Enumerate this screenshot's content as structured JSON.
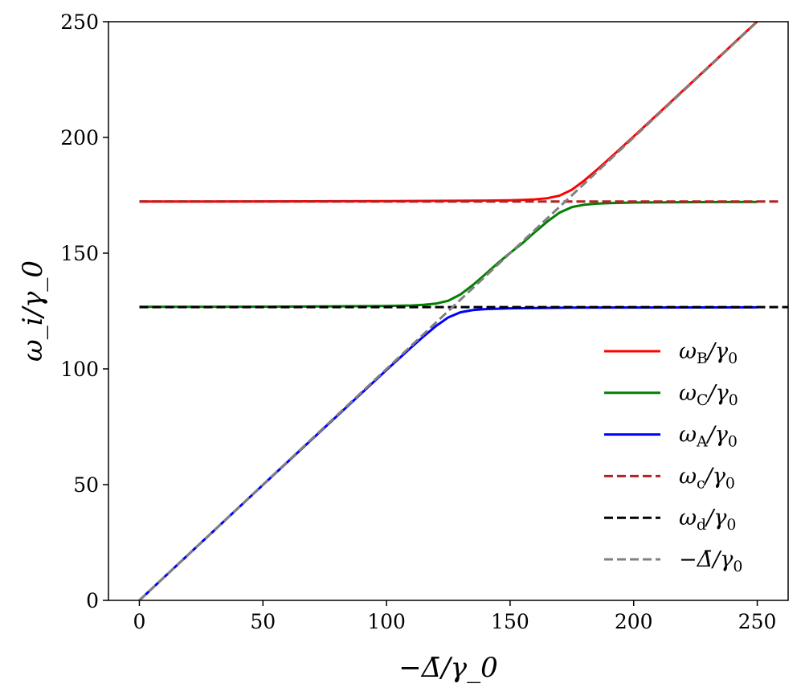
{
  "chart_data": {
    "type": "line",
    "title": "",
    "xlabel": "−Δ̄/γ_0",
    "ylabel": "ω_i/γ_0",
    "xlim": [
      -12.5,
      262.5
    ],
    "ylim": [
      0,
      250
    ],
    "xticks": [
      0,
      50,
      100,
      150,
      200,
      250
    ],
    "yticks": [
      0,
      50,
      100,
      150,
      200,
      250
    ],
    "grid": false,
    "legend_placement": "lower-right",
    "series": [
      {
        "name": "ω_B/γ_0",
        "color": "#ff0000",
        "style": "solid",
        "x": [
          0,
          50,
          100,
          125,
          140,
          150,
          155,
          160,
          165,
          170,
          175,
          180,
          185,
          190,
          200,
          225,
          250
        ],
        "y": [
          172.3,
          172.35,
          172.47,
          172.6,
          172.7,
          172.84,
          172.98,
          173.23,
          173.71,
          174.83,
          177.4,
          181.35,
          185.9,
          190.67,
          200.43,
          225.2,
          250.15
        ]
      },
      {
        "name": "ω_C/γ_0",
        "color": "#008000",
        "style": "solid",
        "x": [
          0,
          50,
          100,
          110,
          115,
          120,
          125,
          130,
          135,
          140,
          145,
          150,
          155,
          160,
          165,
          170,
          175,
          180,
          185,
          190,
          200,
          225,
          250
        ],
        "y": [
          126.8,
          126.86,
          127.15,
          127.4,
          127.67,
          128.2,
          129.45,
          132.22,
          136.28,
          140.86,
          145.65,
          150.1,
          154.3,
          159.1,
          163.6,
          167.5,
          169.9,
          170.95,
          171.4,
          171.63,
          171.87,
          172.05,
          172.15
        ]
      },
      {
        "name": "ω_A/γ_0",
        "color": "#0000ff",
        "style": "solid",
        "x": [
          0,
          50,
          100,
          110,
          115,
          120,
          125,
          130,
          135,
          140,
          150,
          175,
          200,
          250
        ],
        "y": [
          0,
          49.9,
          99.55,
          109.3,
          114.03,
          118.5,
          122.25,
          124.48,
          125.42,
          125.84,
          126.19,
          126.45,
          126.52,
          126.6
        ]
      },
      {
        "name": "ω_c/γ_0",
        "color": "#b22222",
        "style": "dashed",
        "x": [
          0,
          260
        ],
        "y": [
          172.3,
          172.3
        ]
      },
      {
        "name": "ω_d/γ_0",
        "color": "#000000",
        "style": "dashed",
        "x": [
          0,
          262.5
        ],
        "y": [
          126.7,
          126.7
        ]
      },
      {
        "name": "−Δ̄/γ_0",
        "color": "#808080",
        "style": "dashed",
        "x": [
          0,
          250
        ],
        "y": [
          0,
          250
        ]
      }
    ]
  }
}
